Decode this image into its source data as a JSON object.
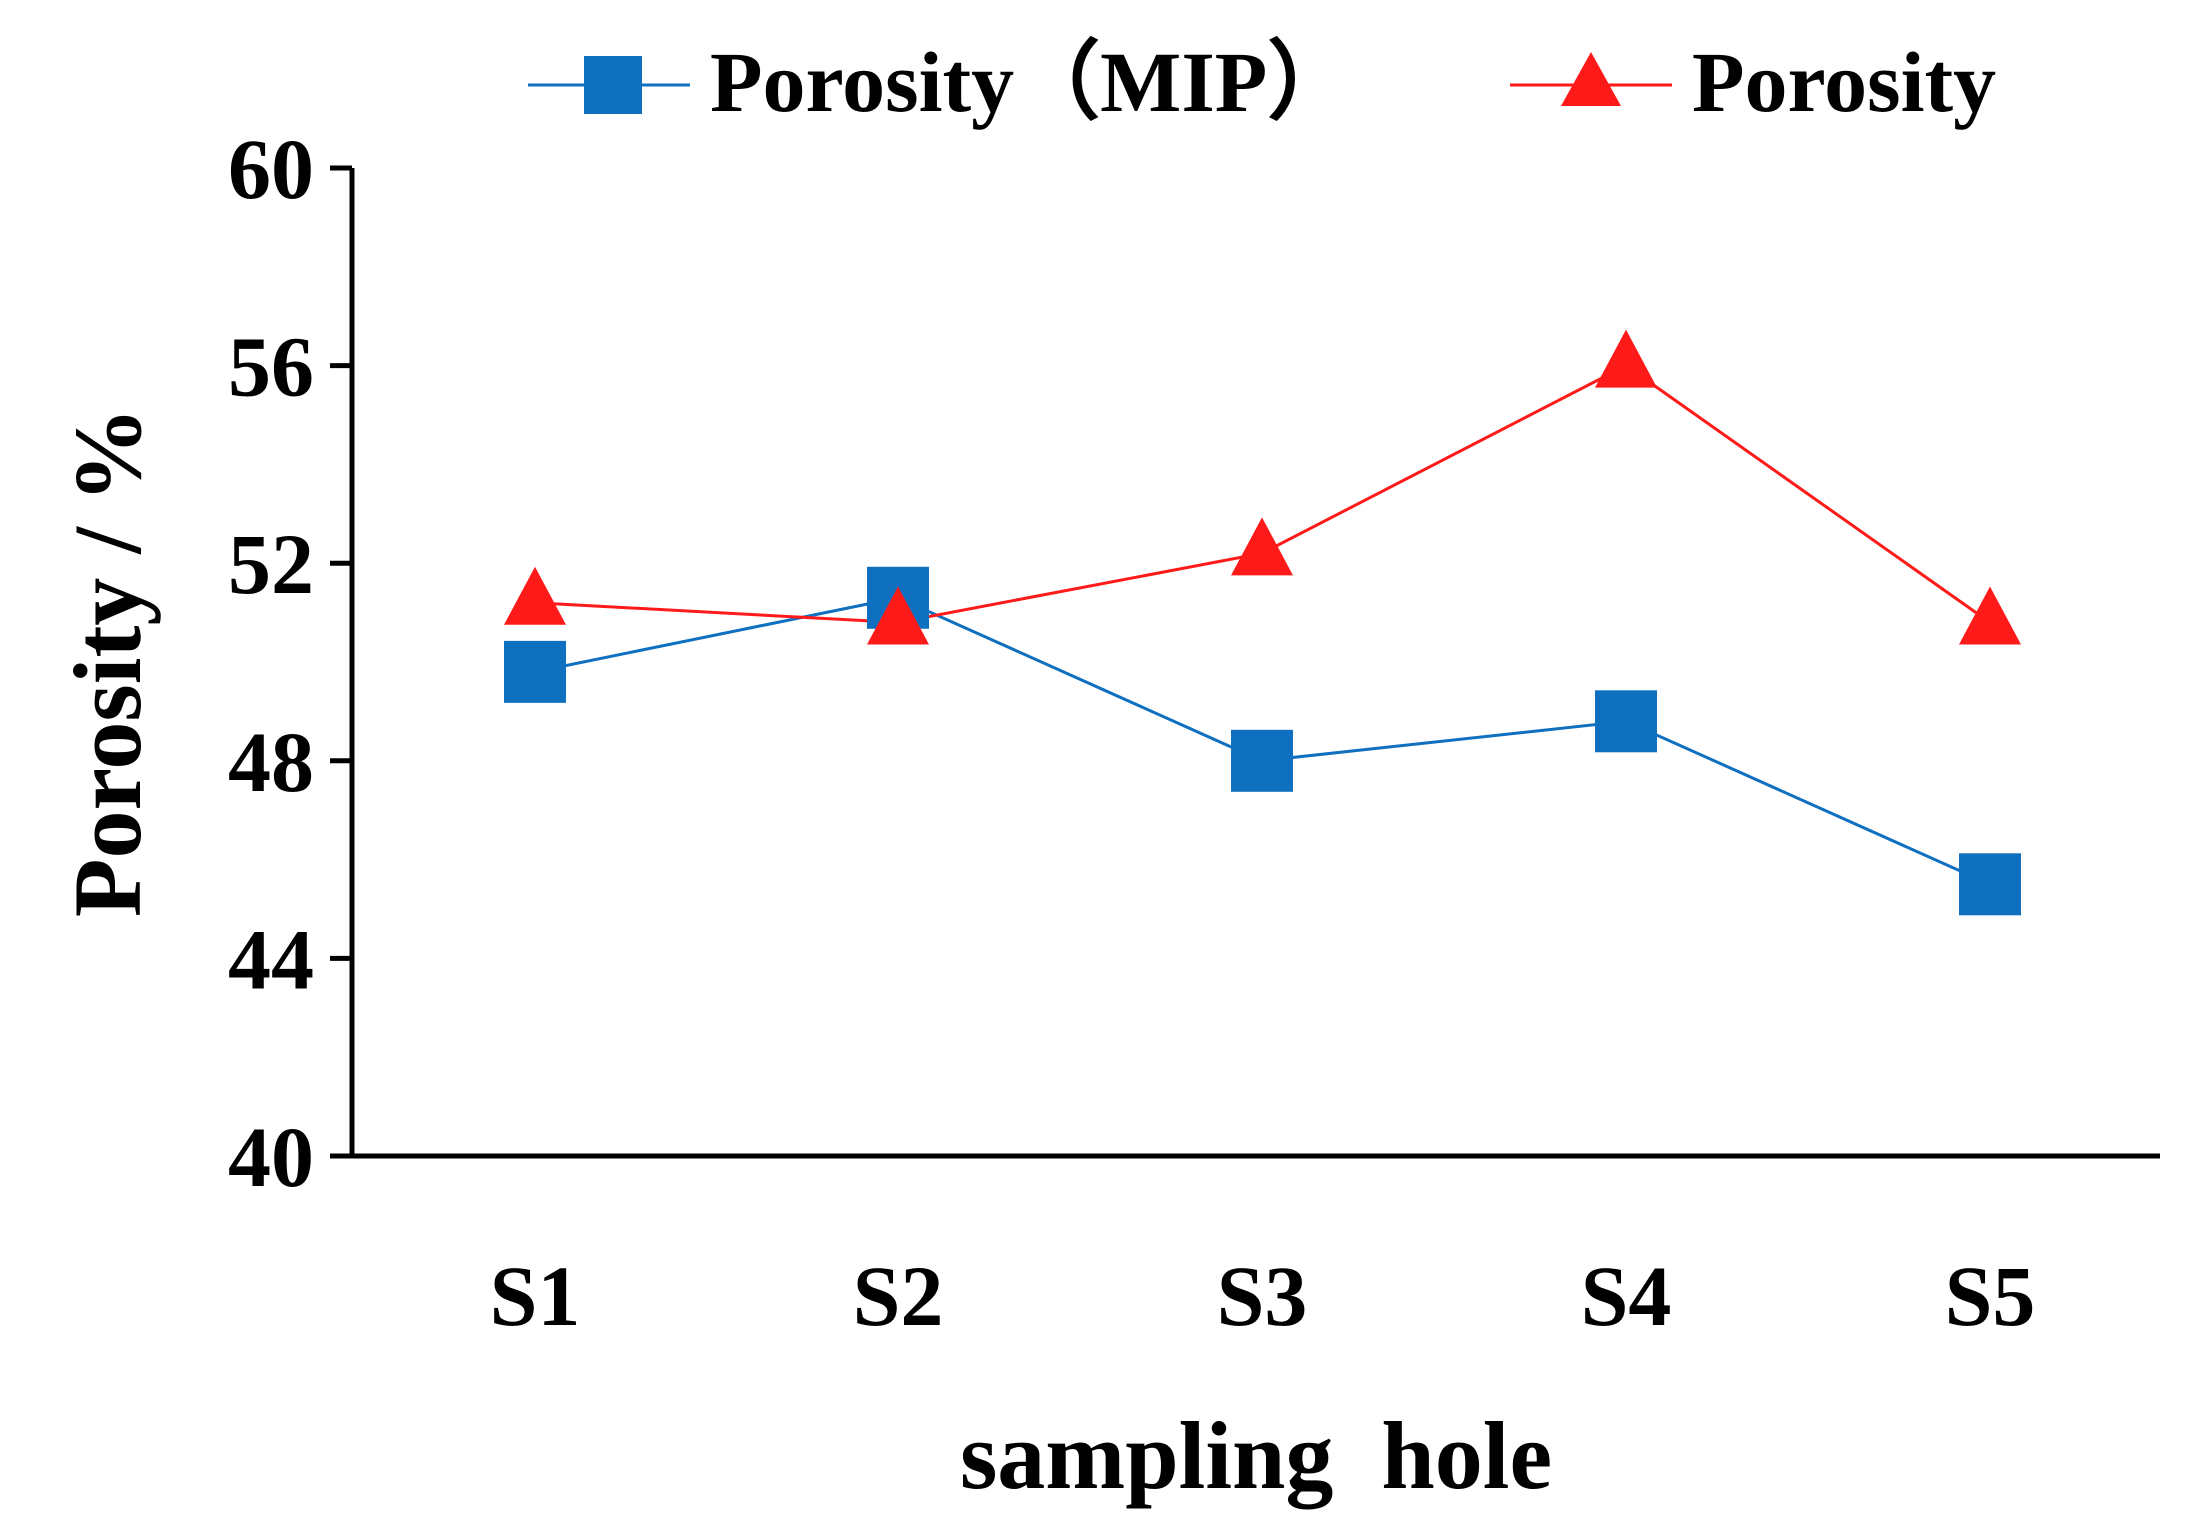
{
  "chart_data": {
    "type": "line",
    "title": "",
    "xlabel": "sampling  hole",
    "ylabel": "Porosity / %",
    "categories": [
      "S1",
      "S2",
      "S3",
      "S4",
      "S5"
    ],
    "ylim": [
      40,
      60
    ],
    "yticks": [
      40,
      44,
      48,
      52,
      56,
      60
    ],
    "ytick_labels": [
      "40",
      "44",
      "48",
      "52",
      "56",
      "60"
    ],
    "grid": false,
    "legend_position": "top",
    "series": [
      {
        "name": "Porosity（MIP）",
        "color": "#1070C0",
        "marker": "square",
        "values": [
          49.8,
          51.3,
          48.0,
          48.8,
          45.5
        ]
      },
      {
        "name": "Porosity",
        "color": "#FF1A1A",
        "marker": "triangle",
        "values": [
          51.2,
          50.8,
          52.2,
          56.0,
          50.8
        ]
      }
    ]
  }
}
